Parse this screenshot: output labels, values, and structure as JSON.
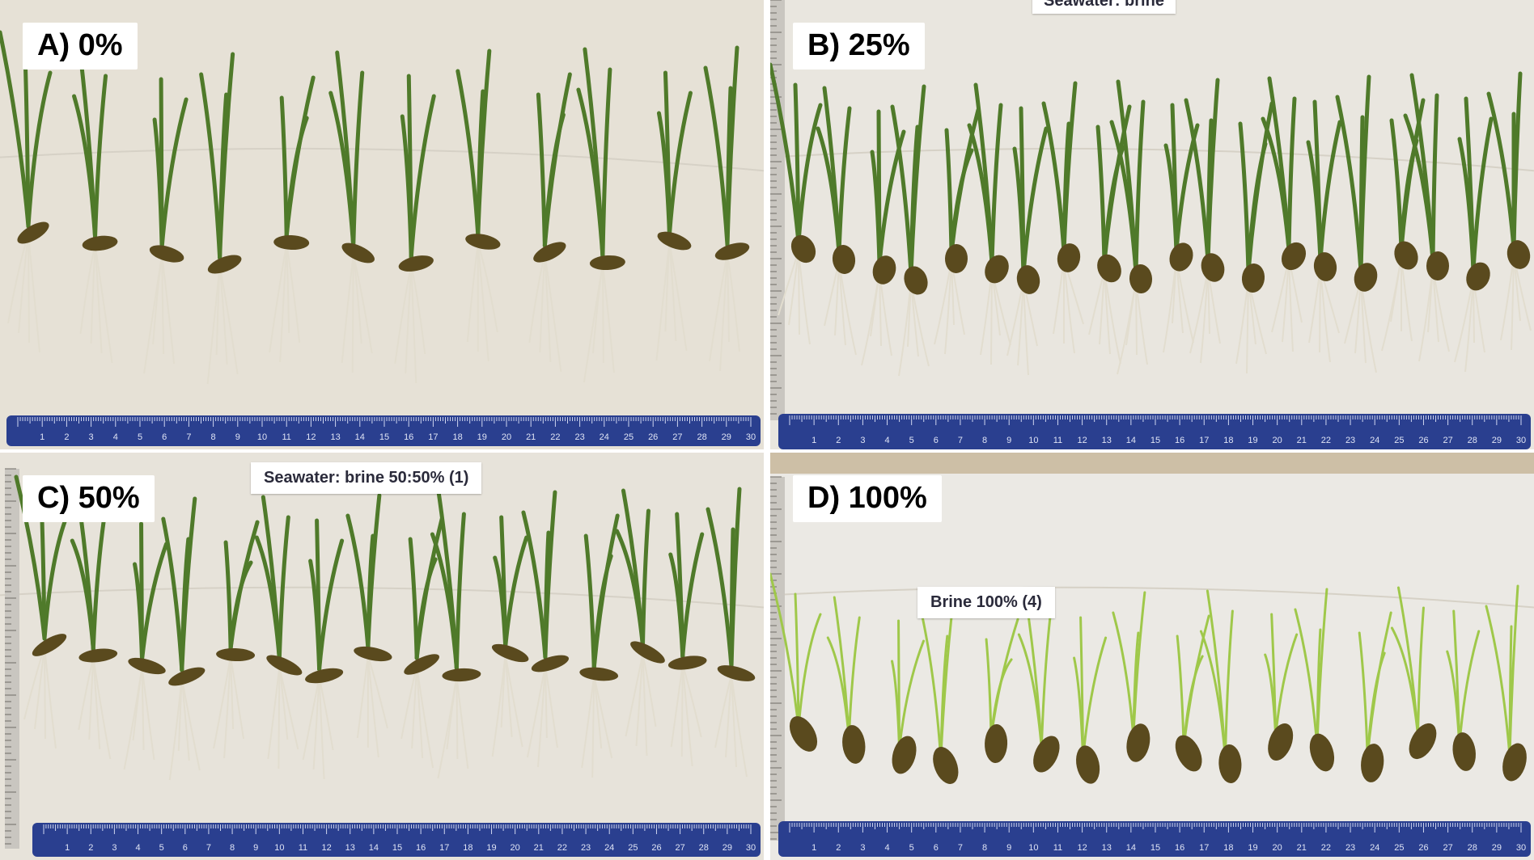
{
  "figure": {
    "panels": [
      {
        "id": "A",
        "label": "A) 0%",
        "tag": ""
      },
      {
        "id": "B",
        "label": "B) 25%",
        "tag": "Seawater: brine"
      },
      {
        "id": "C",
        "label": "C) 50%",
        "tag": "Seawater: brine 50:50% (1)"
      },
      {
        "id": "D",
        "label": "D) 100%",
        "tag": "Brine 100% (4)"
      }
    ],
    "ruler_numbers": [
      "1",
      "2",
      "3",
      "4",
      "5",
      "6",
      "7",
      "8",
      "9",
      "10",
      "11",
      "12",
      "13",
      "14",
      "15",
      "16",
      "17",
      "18",
      "19",
      "20",
      "21",
      "22",
      "23",
      "24",
      "25",
      "26",
      "27",
      "28",
      "29",
      "30"
    ],
    "colors": {
      "background": "#e8e4dc",
      "ruler": "#2a3f8f",
      "leaf": "#4f7a2a",
      "leaf_light": "#9fc84a",
      "seed": "#5a4a1e",
      "root": "#e2ddcf"
    }
  }
}
